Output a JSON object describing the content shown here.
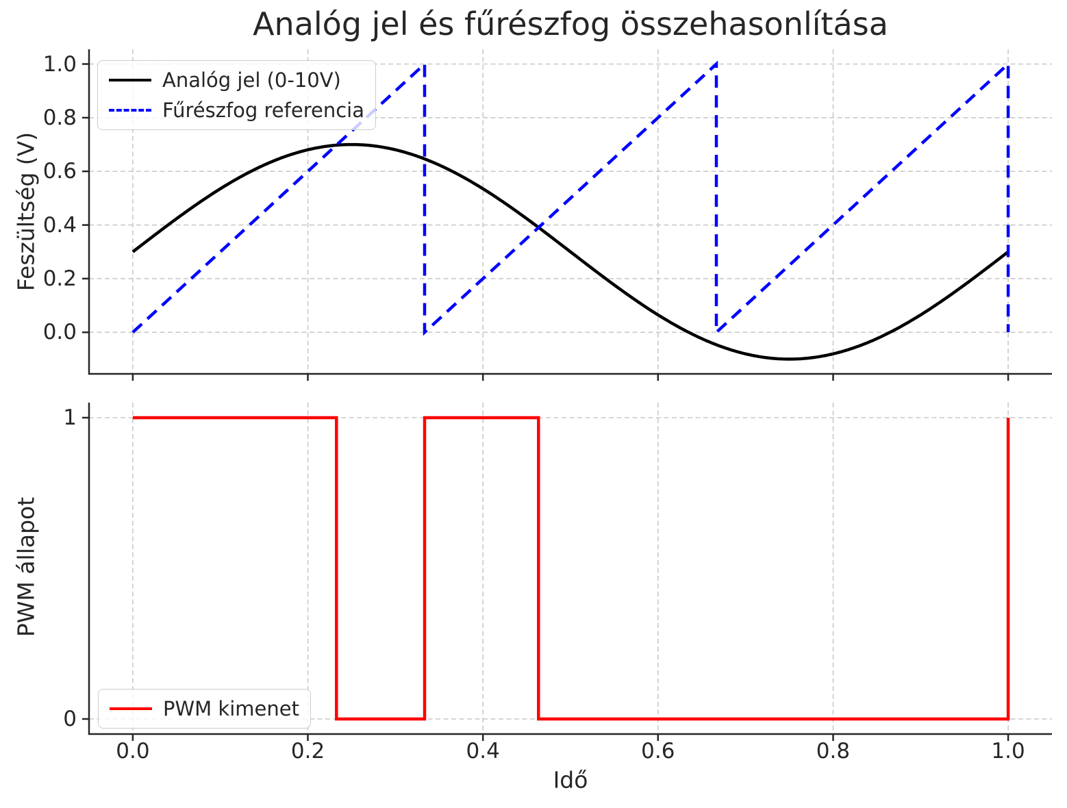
{
  "title": "Analóg jel és fűrészfog összehasonlítása",
  "colors": {
    "analog": "#000000",
    "sawtooth": "#0000ff",
    "pwm": "#ff0000",
    "grid": "#c9c9c9",
    "axes": "#262626",
    "text": "#262626",
    "legend_border": "#cccccc"
  },
  "chart_data": {
    "type": "line",
    "title": "Analóg jel és fűrészfog összehasonlítása",
    "xlabel": "Idő",
    "xlim": [
      -0.05,
      1.05
    ],
    "grid": true,
    "xticks": {
      "values": [
        0,
        0.2,
        0.4,
        0.6,
        0.8,
        1.0
      ],
      "labels": [
        "0.0",
        "0.2",
        "0.4",
        "0.6",
        "0.8",
        "1.0"
      ]
    },
    "subplots": [
      {
        "ylabel": "Feszültség (V)",
        "ylim": [
          -0.155,
          1.055
        ],
        "yticks": {
          "values": [
            0,
            0.2,
            0.4,
            0.6,
            0.8,
            1.0
          ],
          "labels": [
            "0.0",
            "0.2",
            "0.4",
            "0.6",
            "0.8",
            "1.0"
          ]
        },
        "legend_location": "upper left",
        "series": [
          {
            "name": "Analóg jel (0-10V)",
            "color": "#000000",
            "style": "solid",
            "type": "sine",
            "formula": "0.3 + 0.4*sin(2*pi*t)",
            "offset": 0.3,
            "amplitude": 0.4,
            "cycles": 1,
            "t_range": [
              0,
              1
            ]
          },
          {
            "name": "Fűrészfog referencia",
            "color": "#0000ff",
            "style": "dashed",
            "type": "polyline",
            "x": [
              0,
              0.33333,
              0.33333,
              0.66667,
              0.66667,
              1.0,
              1.0
            ],
            "y": [
              0,
              1,
              0,
              1,
              0,
              1,
              0
            ]
          }
        ]
      },
      {
        "ylabel": "PWM állapot",
        "xlabel": "Idő",
        "ylim": [
          -0.05,
          1.05
        ],
        "yticks": {
          "values": [
            0,
            1
          ],
          "labels": [
            "0",
            "1"
          ]
        },
        "legend_location": "lower left",
        "series": [
          {
            "name": "PWM kimenet",
            "color": "#ff0000",
            "style": "solid",
            "type": "polyline",
            "x": [
              0,
              0.2327,
              0.2327,
              0.33333,
              0.33333,
              0.4635,
              0.4635,
              1.0,
              1.0
            ],
            "y": [
              1,
              1,
              0,
              0,
              1,
              1,
              0,
              0,
              1
            ]
          }
        ]
      }
    ]
  }
}
